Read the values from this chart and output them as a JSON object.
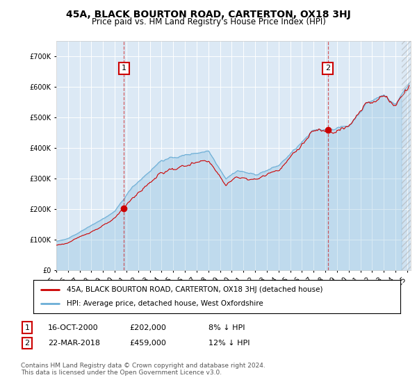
{
  "title": "45A, BLACK BOURTON ROAD, CARTERTON, OX18 3HJ",
  "subtitle": "Price paid vs. HM Land Registry's House Price Index (HPI)",
  "hpi_label": "HPI: Average price, detached house, West Oxfordshire",
  "price_label": "45A, BLACK BOURTON ROAD, CARTERTON, OX18 3HJ (detached house)",
  "hpi_color": "#6baed6",
  "price_color": "#cc0000",
  "annotation1": {
    "label": "1",
    "date": "16-OCT-2000",
    "price": "£202,000",
    "note": "8% ↓ HPI"
  },
  "annotation2": {
    "label": "2",
    "date": "22-MAR-2018",
    "price": "£459,000",
    "note": "12% ↓ HPI"
  },
  "footer": "Contains HM Land Registry data © Crown copyright and database right 2024.\nThis data is licensed under the Open Government Licence v3.0.",
  "ylim": [
    0,
    750000
  ],
  "yticks": [
    0,
    100000,
    200000,
    300000,
    400000,
    500000,
    600000,
    700000
  ],
  "plot_bg": "#dce9f5",
  "t1_year": 2000.79,
  "t2_year": 2018.22,
  "price_at_t1": 202000,
  "price_at_t2": 459000,
  "xlim_left": 1995.0,
  "xlim_right": 2025.3,
  "hatch_start": 2024.5
}
